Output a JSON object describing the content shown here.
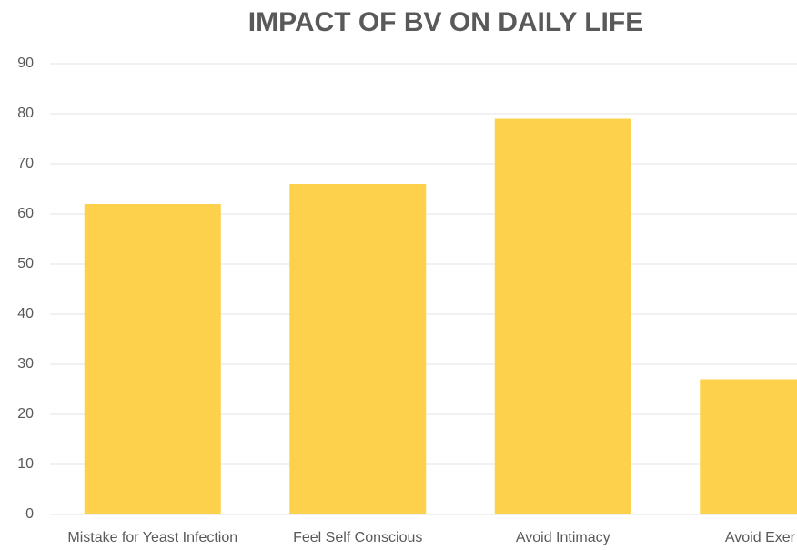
{
  "chart_data": {
    "type": "bar",
    "title": "IMPACT OF BV ON DAILY LIFE",
    "categories": [
      "Mistake for Yeast Infection",
      "Feel Self Conscious",
      "Avoid Intimacy",
      "Avoid Exer"
    ],
    "values": [
      62,
      66,
      79,
      27
    ],
    "color": "#fdd14b",
    "ylim": [
      0,
      90
    ],
    "yticks": [
      0,
      10,
      20,
      30,
      40,
      50,
      60,
      70,
      80,
      90
    ],
    "grid": true
  }
}
